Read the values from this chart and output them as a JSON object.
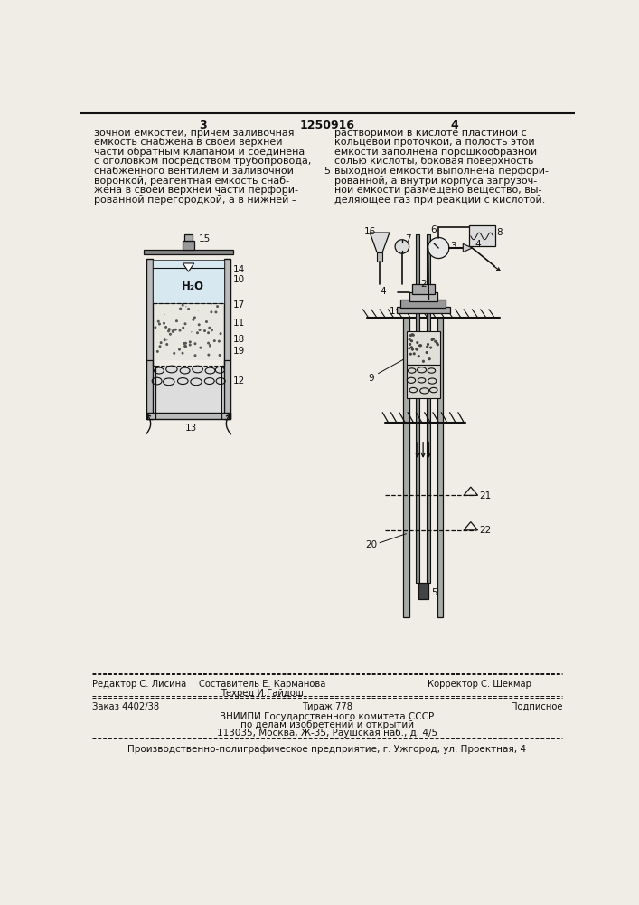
{
  "bg_color": "#f0ede6",
  "page_width": 7.07,
  "page_height": 10.0,
  "header": {
    "page_left": "3",
    "patent_num": "1250916",
    "page_right": "4"
  },
  "text_left": [
    "зочной емкостей, причем заливочная",
    "емкость снабжена в своей верхней",
    "части обратным клапаном и соединена",
    "с оголовком посредством трубопровода,",
    "снабженного вентилем и заливочной",
    "воронкой, реагентная емкость снаб-",
    "жена в своей верхней части перфори-",
    "рованной перегородкой, а в нижней –"
  ],
  "text_right": [
    "растворимой в кислоте пластиной с",
    "кольцевой проточкой, а полость этой",
    "емкости заполнена порошкообразной",
    "солью кислоты, боковая поверхность",
    "выходной емкости выполнена перфори-",
    "рованной, а внутри корпуса загрузоч-",
    "ной емкости размещено вещество, вы-",
    "деляющее газ при реакции с кислотой."
  ]
}
